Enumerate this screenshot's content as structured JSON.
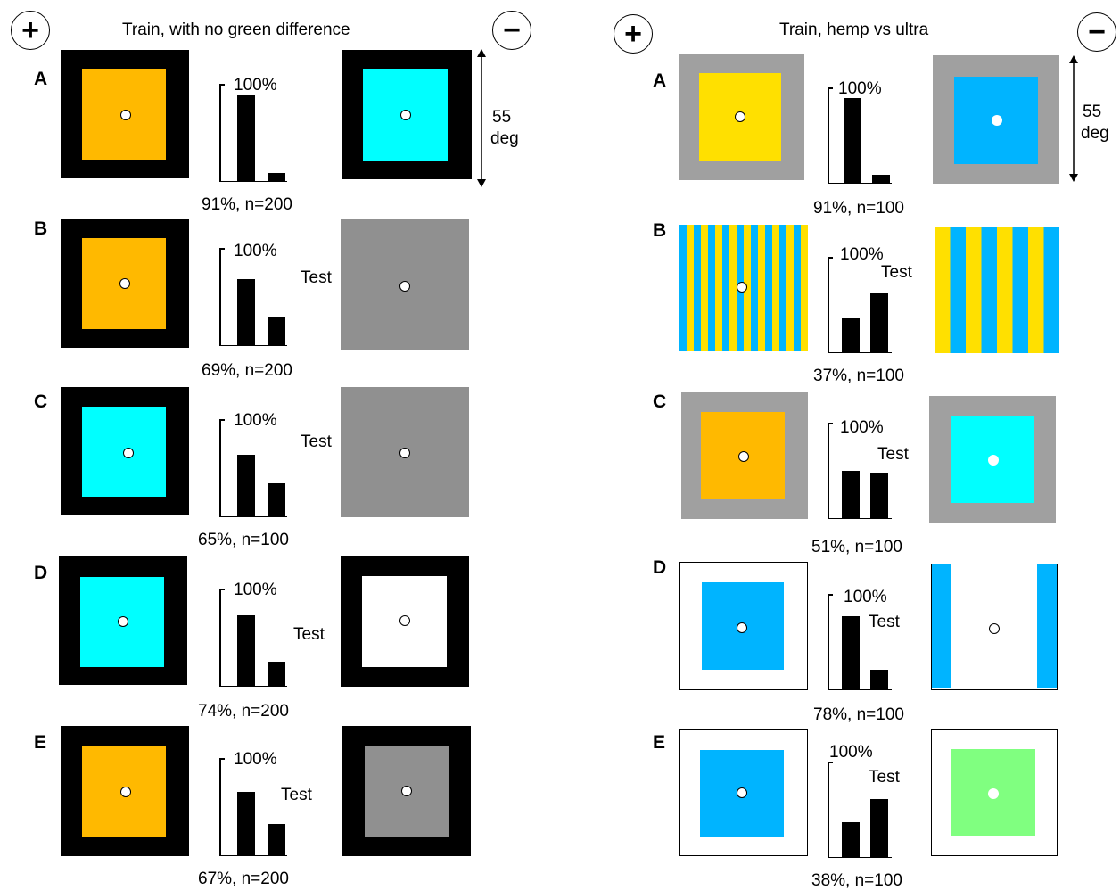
{
  "left_panel": {
    "title": "Train, with no green difference",
    "plus": "+",
    "minus": "−",
    "scale_value": "55",
    "scale_unit": "deg",
    "rows": [
      {
        "letter": "A",
        "pct_label": "100%",
        "test": "",
        "result": "91%, n=200",
        "bars": [
          0.91,
          0.09
        ]
      },
      {
        "letter": "B",
        "pct_label": "100%",
        "test": "Test",
        "result": "69%, n=200",
        "bars": [
          0.69,
          0.31
        ]
      },
      {
        "letter": "C",
        "pct_label": "100%",
        "test": "Test",
        "result": "65%, n=100",
        "bars": [
          0.65,
          0.35
        ]
      },
      {
        "letter": "D",
        "pct_label": "100%",
        "test": "Test",
        "result": "74%, n=200",
        "bars": [
          0.74,
          0.26
        ]
      },
      {
        "letter": "E",
        "pct_label": "100%",
        "test": "Test",
        "result": "67%, n=200",
        "bars": [
          0.67,
          0.33
        ]
      }
    ]
  },
  "right_panel": {
    "title": "Train, hemp vs ultra",
    "plus": "+",
    "minus": "−",
    "scale_value": "55",
    "scale_unit": "deg",
    "rows": [
      {
        "letter": "A",
        "pct_label": "100%",
        "test": "",
        "result": "91%, n=100",
        "bars": [
          0.91,
          0.09
        ]
      },
      {
        "letter": "B",
        "pct_label": "100%",
        "test": "Test",
        "result": "37%, n=100",
        "bars": [
          0.37,
          0.63
        ]
      },
      {
        "letter": "C",
        "pct_label": "100%",
        "test": "Test",
        "result": "51%, n=100",
        "bars": [
          0.51,
          0.49
        ]
      },
      {
        "letter": "D",
        "pct_label": "100%",
        "test": "Test",
        "result": "78%, n=100",
        "bars": [
          0.78,
          0.22
        ]
      },
      {
        "letter": "E",
        "pct_label": "100%",
        "test": "Test",
        "result": "38%, n=100",
        "bars": [
          0.38,
          0.62
        ]
      }
    ]
  },
  "colors": {
    "orange": "#FFB900",
    "cyan": "#00FFFF",
    "gray": "#909090",
    "light_gray": "#A0A0A0",
    "yellow": "#FFE000",
    "blue": "#00B4FF",
    "green": "#80FF80",
    "black": "#000000",
    "white": "#FFFFFF"
  }
}
